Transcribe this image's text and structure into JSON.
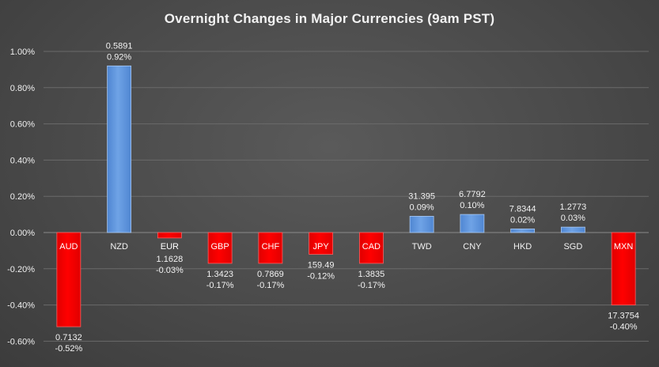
{
  "chart_data": {
    "type": "bar",
    "title": "Overnight Changes in Major Currencies (9am PST)",
    "xlabel": "",
    "ylabel": "",
    "ylim": [
      -0.006,
      0.01
    ],
    "yticks": [
      "1.00%",
      "0.80%",
      "0.60%",
      "0.40%",
      "0.20%",
      "0.00%",
      "-0.20%",
      "-0.40%",
      "-0.60%"
    ],
    "grid": true,
    "categories": [
      "AUD",
      "NZD",
      "EUR",
      "GBP",
      "CHF",
      "JPY",
      "CAD",
      "TWD",
      "CNY",
      "HKD",
      "SGD",
      "MXN"
    ],
    "values": [
      -0.0052,
      0.0092,
      -0.0003,
      -0.0017,
      -0.0017,
      -0.0012,
      -0.0017,
      0.0009,
      0.001,
      0.0002,
      0.0003,
      -0.004
    ],
    "rates": [
      "0.7132",
      "0.5891",
      "1.1628",
      "1.3423",
      "0.7869",
      "159.49",
      "1.3835",
      "31.395",
      "6.7792",
      "7.8344",
      "1.2773",
      "17.3754"
    ],
    "pct_labels": [
      "-0.52%",
      "0.92%",
      "-0.03%",
      "-0.17%",
      "-0.17%",
      "-0.12%",
      "-0.17%",
      "0.09%",
      "0.10%",
      "0.02%",
      "0.03%",
      "-0.40%"
    ],
    "colors": {
      "positive": "#6fa3e6",
      "negative": "#ff0000",
      "grid": "#6a6a6a",
      "text": "#f2f2f2"
    }
  }
}
